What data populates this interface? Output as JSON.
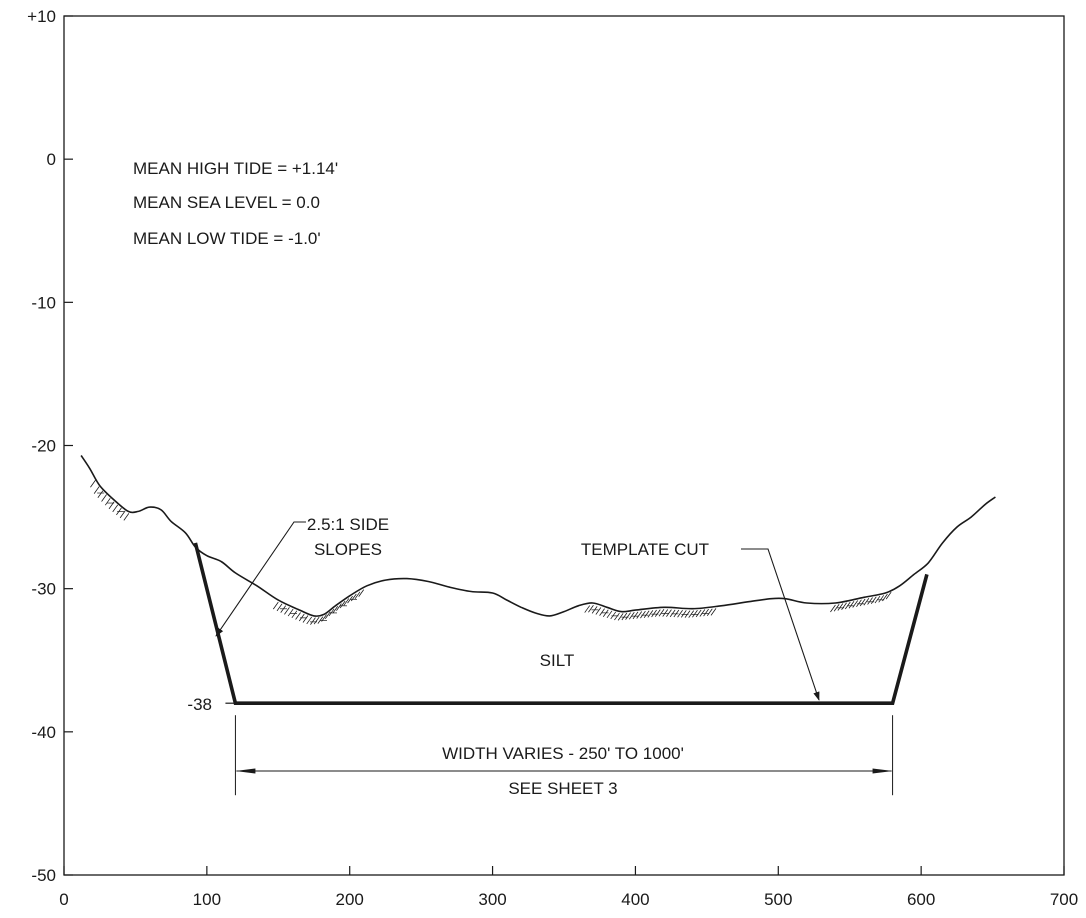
{
  "chart_data": {
    "type": "line",
    "title": "",
    "xlabel": "",
    "ylabel": "",
    "xlim": [
      0,
      700
    ],
    "ylim": [
      -50,
      10
    ],
    "x_ticks": [
      0,
      100,
      200,
      300,
      400,
      500,
      600,
      700
    ],
    "x_tick_labels": [
      "0",
      "100",
      "200",
      "300",
      "400",
      "500",
      "600",
      "700"
    ],
    "y_ticks": [
      10,
      0,
      -10,
      -20,
      -30,
      -40,
      -50
    ],
    "y_tick_labels": [
      "+10",
      "0",
      "-10",
      "-20",
      "-30",
      "-40",
      "-50"
    ],
    "grid": false,
    "notes": [
      "MEAN HIGH TIDE = +1.14'",
      "MEAN SEA LEVEL = 0.0",
      "MEAN LOW TIDE = -1.0'"
    ],
    "existing_bottom": {
      "x": [
        12,
        18,
        25,
        35,
        45,
        52,
        60,
        68,
        75,
        85,
        92,
        100,
        110,
        120,
        135,
        150,
        165,
        175,
        182,
        190,
        200,
        212,
        225,
        240,
        255,
        270,
        285,
        300,
        310,
        320,
        330,
        340,
        350,
        360,
        370,
        380,
        390,
        400,
        420,
        440,
        460,
        480,
        495,
        505,
        520,
        540,
        560,
        575,
        585,
        595,
        605,
        615,
        625,
        635,
        645,
        652
      ],
      "y": [
        -20.7,
        -21.6,
        -22.8,
        -23.8,
        -24.6,
        -24.6,
        -24.3,
        -24.5,
        -25.3,
        -26.1,
        -27.1,
        -27.7,
        -28.1,
        -28.9,
        -29.8,
        -30.8,
        -31.5,
        -31.9,
        -31.8,
        -31.2,
        -30.5,
        -29.8,
        -29.4,
        -29.3,
        -29.5,
        -29.9,
        -30.2,
        -30.3,
        -30.8,
        -31.3,
        -31.7,
        -31.9,
        -31.6,
        -31.2,
        -31.0,
        -31.3,
        -31.6,
        -31.5,
        -31.3,
        -31.4,
        -31.2,
        -30.9,
        -30.7,
        -30.7,
        -31.0,
        -31.0,
        -30.6,
        -30.3,
        -29.8,
        -29.0,
        -28.2,
        -26.8,
        -25.7,
        -25.0,
        -24.1,
        -23.6
      ]
    },
    "template_cut": {
      "x": [
        92,
        120,
        580,
        604
      ],
      "y": [
        -26.8,
        -38,
        -38,
        -29
      ]
    },
    "labels": {
      "bottom_elevation": "-38",
      "side_slopes_line1": "2.5:1 SIDE",
      "side_slopes_line2": "SLOPES",
      "template_cut": "TEMPLATE CUT",
      "material": "SILT",
      "width_line1": "WIDTH VARIES - 250' TO 1000'",
      "width_line2": "SEE SHEET 3"
    },
    "hatch_zones_x": [
      [
        22,
        48
      ],
      [
        150,
        212
      ],
      [
        368,
        458
      ],
      [
        540,
        580
      ]
    ],
    "colors": {
      "ink": "#1a1a1a",
      "background": "#ffffff"
    }
  }
}
